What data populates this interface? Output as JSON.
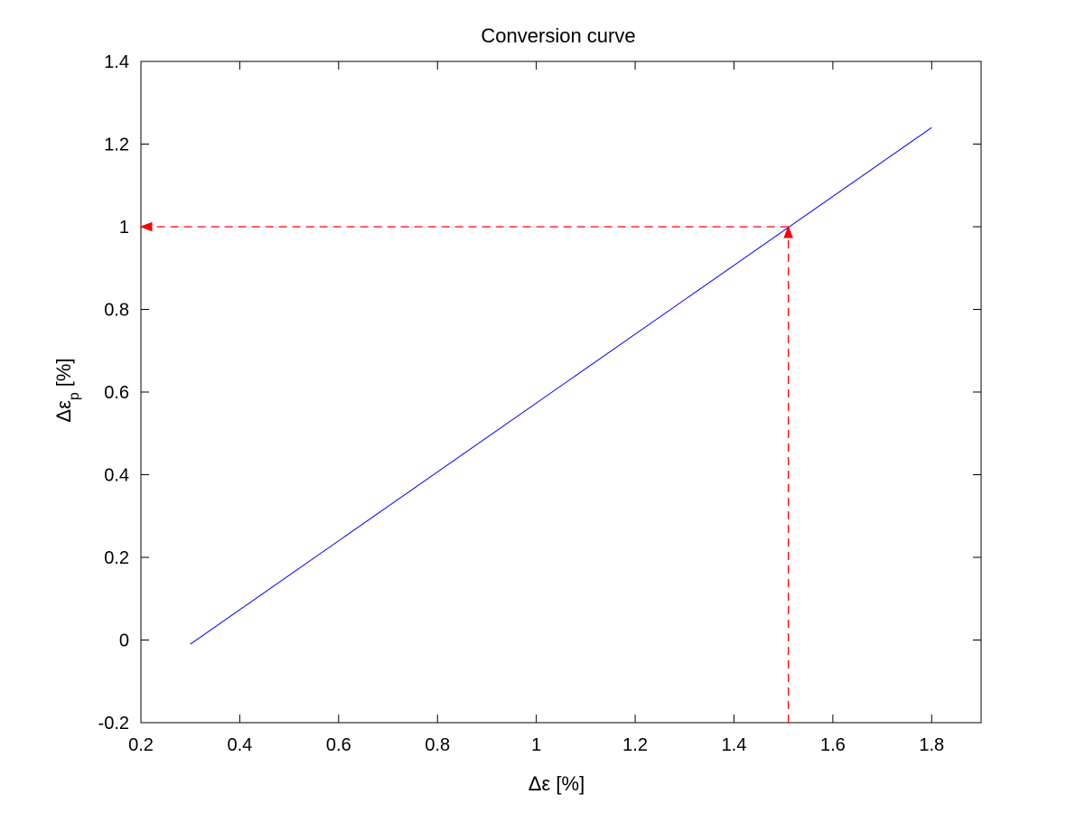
{
  "chart_data": {
    "type": "line",
    "title": "Conversion curve",
    "xlabel": "Δε [%]",
    "ylabel_main": "Δε",
    "ylabel_sub": "p",
    "ylabel_unit": "[%]",
    "xlim": [
      0.2,
      1.9
    ],
    "ylim": [
      -0.2,
      1.4
    ],
    "xticks": [
      0.2,
      0.4,
      0.6,
      0.8,
      1,
      1.2,
      1.4,
      1.6,
      1.8
    ],
    "xtick_labels": [
      "0.2",
      "0.4",
      "0.6",
      "0.8",
      "1",
      "1.2",
      "1.4",
      "1.6",
      "1.8"
    ],
    "yticks": [
      -0.2,
      0,
      0.2,
      0.4,
      0.6,
      0.8,
      1,
      1.2,
      1.4
    ],
    "ytick_labels": [
      "-0.2",
      "0",
      "0.2",
      "0.4",
      "0.6",
      "0.8",
      "1",
      "1.2",
      "1.4"
    ],
    "grid": false,
    "series": [
      {
        "style": "solid",
        "color": "#0000ff",
        "x": [
          0.3,
          1.8
        ],
        "y": [
          -0.01,
          1.24
        ]
      }
    ],
    "annotations": [
      {
        "kind": "dashed-arrow",
        "color": "#ff0000",
        "from": [
          1.51,
          -0.2
        ],
        "to": [
          1.51,
          1.0
        ]
      },
      {
        "kind": "dashed-arrow",
        "color": "#ff0000",
        "from": [
          1.51,
          1.0
        ],
        "to": [
          0.2,
          1.0
        ]
      }
    ]
  }
}
